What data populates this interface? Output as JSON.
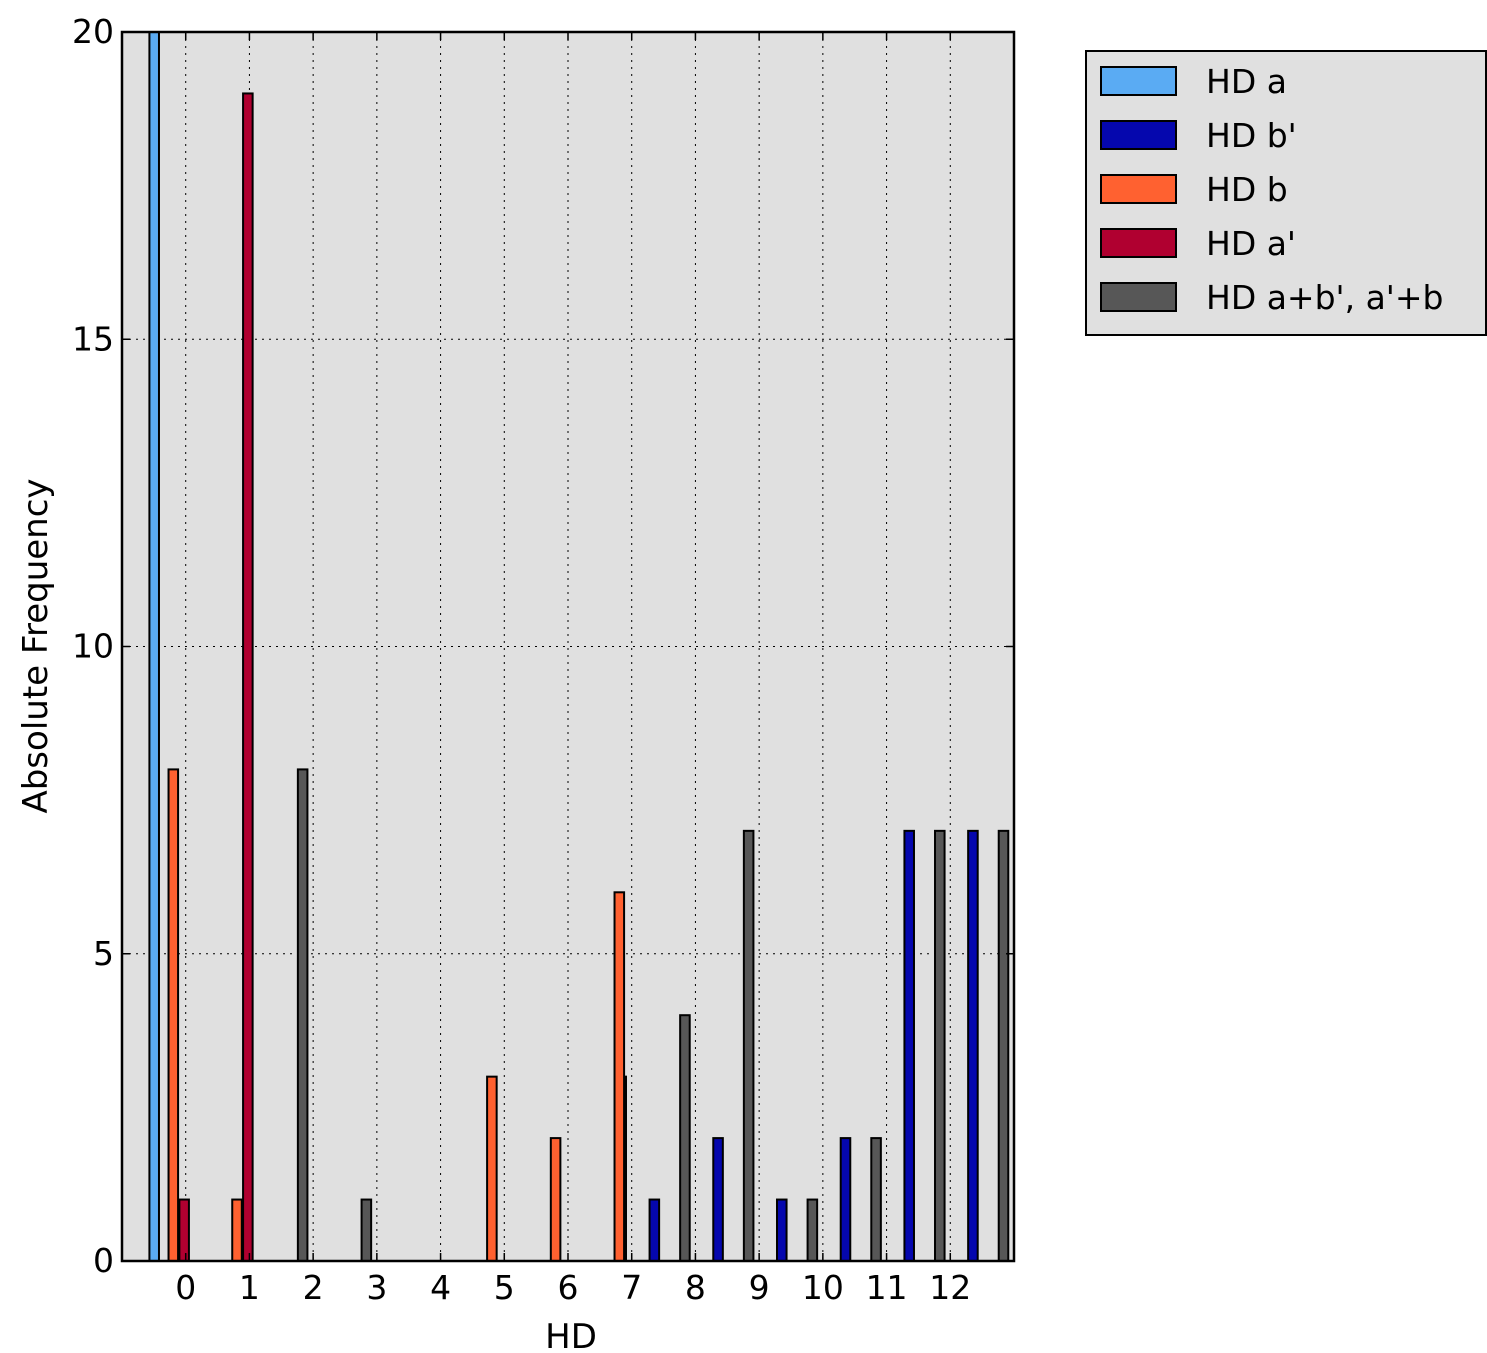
{
  "chart_data": {
    "type": "bar",
    "title": "",
    "xlabel": "HD",
    "ylabel": "Absolute Frequency",
    "categories": [
      "0",
      "1",
      "2",
      "3",
      "4",
      "5",
      "6",
      "7",
      "8",
      "9",
      "10",
      "11",
      "12"
    ],
    "xlim": [
      -1,
      13
    ],
    "ylim": [
      0,
      20
    ],
    "yticks": [
      "0",
      "5",
      "10",
      "15",
      "20"
    ],
    "grid": true,
    "legend_position": "outside-top-right",
    "series": [
      {
        "name": "HD a",
        "color": "#5aabf3",
        "values": [
          20,
          0,
          0,
          0,
          0,
          0,
          0,
          0,
          0,
          0,
          0,
          0,
          0
        ]
      },
      {
        "name": "HD b'",
        "color": "#0507ae",
        "values": [
          0,
          0,
          0,
          0,
          0,
          0,
          0,
          1,
          2,
          1,
          2,
          7,
          7
        ]
      },
      {
        "name": "HD b",
        "color": "#ff6130",
        "values": [
          8,
          1,
          0,
          0,
          0,
          3,
          2,
          6,
          0,
          0,
          0,
          0,
          0
        ]
      },
      {
        "name": "HD a'",
        "color": "#b00030",
        "values": [
          1,
          19,
          0,
          0,
          0,
          0,
          0,
          0,
          0,
          0,
          0,
          0,
          0
        ]
      },
      {
        "name": "HD a+b', a'+b",
        "color": "#575757",
        "values": [
          0,
          8,
          1,
          0,
          0,
          0,
          3,
          4,
          7,
          1,
          2,
          7,
          7
        ]
      }
    ]
  }
}
